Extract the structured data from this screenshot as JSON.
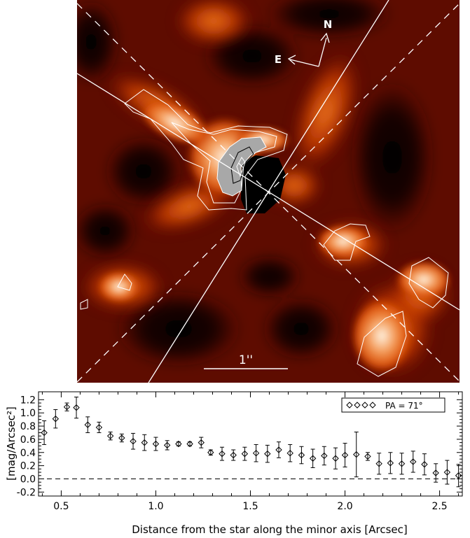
{
  "image_panel": {
    "compass_north": "N",
    "compass_east": "E",
    "scale_bar_label": "1''",
    "colors": {
      "background": "#000000",
      "low": "#3a0500",
      "mid": "#b82a00",
      "high": "#f07a20",
      "peak": "#fde8d0",
      "contour": "#ffffff",
      "core_fill": "#a8a8a8"
    }
  },
  "chart_data": {
    "type": "scatter",
    "xlabel": "Distance from the star along the minor axis [Arcsec]",
    "ylabel": "[mag/Arcsec²]",
    "xlim": [
      0.38,
      2.62
    ],
    "ylim": [
      -0.26,
      1.32
    ],
    "x_ticks": [
      0.5,
      1.0,
      1.5,
      2.0,
      2.5
    ],
    "x_tick_labels": [
      "0.5",
      "1.0",
      "1.5",
      "2.0",
      "2.5"
    ],
    "y_ticks": [
      -0.2,
      0.0,
      0.2,
      0.4,
      0.6,
      0.8,
      1.0,
      1.2
    ],
    "y_tick_labels": [
      "-0.2",
      "0.0",
      "0.2",
      "0.4",
      "0.6",
      "0.8",
      "1.0",
      "1.2"
    ],
    "reference_line_y": 0.0,
    "legend": {
      "label": "PA = 71°",
      "placement": "top-right",
      "marker": "diamond"
    },
    "series": [
      {
        "name": "PA = 71°",
        "x": [
          0.41,
          0.47,
          0.53,
          0.58,
          0.64,
          0.7,
          0.76,
          0.82,
          0.88,
          0.94,
          1.0,
          1.06,
          1.12,
          1.18,
          1.24,
          1.29,
          1.35,
          1.41,
          1.47,
          1.53,
          1.59,
          1.65,
          1.71,
          1.77,
          1.83,
          1.89,
          1.95,
          2.0,
          2.06,
          2.12,
          2.18,
          2.24,
          2.3,
          2.36,
          2.42,
          2.48,
          2.54,
          2.6
        ],
        "y": [
          0.7,
          0.91,
          1.09,
          1.08,
          0.82,
          0.78,
          0.65,
          0.62,
          0.57,
          0.55,
          0.53,
          0.51,
          0.53,
          0.53,
          0.55,
          0.4,
          0.38,
          0.36,
          0.38,
          0.39,
          0.38,
          0.44,
          0.39,
          0.36,
          0.31,
          0.35,
          0.31,
          0.36,
          0.37,
          0.34,
          0.23,
          0.24,
          0.23,
          0.26,
          0.22,
          0.09,
          0.1,
          0.05
        ],
        "err": [
          0.18,
          0.14,
          0.06,
          0.16,
          0.12,
          0.08,
          0.06,
          0.06,
          0.12,
          0.12,
          0.1,
          0.07,
          0.03,
          0.03,
          0.08,
          0.04,
          0.1,
          0.08,
          0.1,
          0.13,
          0.13,
          0.12,
          0.13,
          0.13,
          0.14,
          0.14,
          0.16,
          0.18,
          0.34,
          0.06,
          0.16,
          0.16,
          0.16,
          0.16,
          0.16,
          0.14,
          0.18,
          0.17
        ]
      }
    ]
  }
}
